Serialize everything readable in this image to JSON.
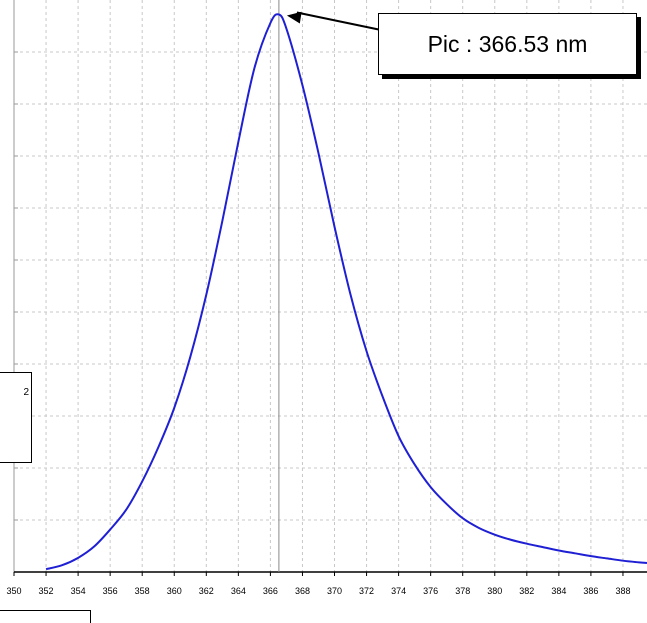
{
  "chart_data": {
    "type": "line",
    "title": "",
    "xlabel": "",
    "ylabel": "",
    "xlim": [
      350,
      389.5
    ],
    "ylim": [
      0,
      1
    ],
    "grid": true,
    "x_ticks": [
      350,
      352,
      354,
      356,
      358,
      360,
      362,
      364,
      366,
      368,
      370,
      372,
      374,
      376,
      378,
      380,
      382,
      384,
      386,
      388
    ],
    "x_tick_labels": [
      "350",
      "352",
      "354",
      "356",
      "358",
      "360",
      "362",
      "364",
      "366",
      "368",
      "370",
      "372",
      "374",
      "376",
      "378",
      "380",
      "382",
      "384",
      "386",
      "388"
    ],
    "series": [
      {
        "name": "",
        "color": "#1f1fd4",
        "x": [
          352,
          353,
          354,
          355,
          356,
          357,
          358,
          359,
          360,
          361,
          362,
          363,
          364,
          365,
          366,
          366.53,
          367,
          368,
          369,
          370,
          371,
          372,
          373,
          374,
          375,
          376,
          377,
          378,
          379,
          380,
          381,
          382,
          383,
          384,
          385,
          386,
          387,
          388,
          389,
          389.5
        ],
        "y": [
          0.005,
          0.012,
          0.025,
          0.045,
          0.075,
          0.11,
          0.16,
          0.22,
          0.29,
          0.38,
          0.49,
          0.62,
          0.76,
          0.89,
          0.97,
          0.985,
          0.96,
          0.86,
          0.74,
          0.61,
          0.49,
          0.39,
          0.31,
          0.24,
          0.19,
          0.15,
          0.12,
          0.095,
          0.078,
          0.066,
          0.057,
          0.05,
          0.044,
          0.038,
          0.033,
          0.028,
          0.024,
          0.02,
          0.017,
          0.016
        ]
      }
    ],
    "peak_x": 366.53,
    "annotation": {
      "text": "Pic : 366.53 nm",
      "x": 366.53
    }
  },
  "partial_box_left": {
    "text": "2"
  }
}
